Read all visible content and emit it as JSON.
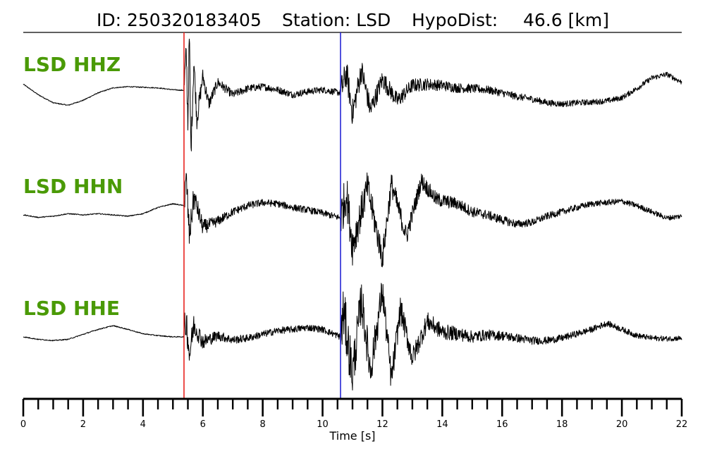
{
  "header": {
    "id_text": "ID: 250320183405",
    "station_text": "Station: LSD",
    "hypo_label": "HypoDist:",
    "hypo_value": "46.6 [km]"
  },
  "colors": {
    "label_green": "#4a9a06",
    "p_pick": "#e8231f",
    "s_pick": "#2626d4",
    "trace": "#000000"
  },
  "chart_data": {
    "type": "line",
    "xlabel": "Time [s]",
    "xlim": [
      0,
      22
    ],
    "major_ticks": [
      0,
      2,
      4,
      6,
      8,
      10,
      12,
      14,
      16,
      18,
      20,
      22
    ],
    "minor_tick_step": 0.5,
    "picks": [
      {
        "phase": "P",
        "time": 5.37,
        "color": "#e8231f"
      },
      {
        "phase": "S",
        "time": 10.6,
        "color": "#2626d4"
      }
    ],
    "series": [
      {
        "name": "LSD HHZ",
        "ylim": [
          -1,
          1
        ],
        "points": [
          [
            0,
            0.12
          ],
          [
            0.5,
            -0.05
          ],
          [
            1.0,
            -0.18
          ],
          [
            1.5,
            -0.22
          ],
          [
            2.0,
            -0.14
          ],
          [
            2.5,
            -0.02
          ],
          [
            3.0,
            0.06
          ],
          [
            3.5,
            0.08
          ],
          [
            4.0,
            0.07
          ],
          [
            4.5,
            0.06
          ],
          [
            5.0,
            0.03
          ],
          [
            5.37,
            0.02
          ],
          [
            5.45,
            0.6
          ],
          [
            5.5,
            -0.5
          ],
          [
            5.55,
            0.95
          ],
          [
            5.6,
            -1.0
          ],
          [
            5.7,
            0.5
          ],
          [
            5.8,
            -0.45
          ],
          [
            6.0,
            0.25
          ],
          [
            6.2,
            -0.2
          ],
          [
            6.5,
            0.15
          ],
          [
            7.0,
            -0.05
          ],
          [
            7.5,
            0.05
          ],
          [
            8.0,
            0.08
          ],
          [
            8.5,
            0.03
          ],
          [
            9.0,
            -0.05
          ],
          [
            9.5,
            0.0
          ],
          [
            10.0,
            0.03
          ],
          [
            10.6,
            -0.02
          ],
          [
            10.8,
            0.3
          ],
          [
            11.0,
            -0.35
          ],
          [
            11.3,
            0.35
          ],
          [
            11.6,
            -0.3
          ],
          [
            12.0,
            0.2
          ],
          [
            12.5,
            -0.15
          ],
          [
            13.0,
            0.1
          ],
          [
            13.5,
            0.12
          ],
          [
            14.0,
            0.1
          ],
          [
            14.5,
            0.06
          ],
          [
            15.0,
            0.05
          ],
          [
            15.5,
            0.03
          ],
          [
            16.0,
            -0.02
          ],
          [
            16.5,
            -0.08
          ],
          [
            17.0,
            -0.12
          ],
          [
            17.5,
            -0.18
          ],
          [
            18.0,
            -0.2
          ],
          [
            18.5,
            -0.18
          ],
          [
            19.0,
            -0.17
          ],
          [
            19.5,
            -0.15
          ],
          [
            20.0,
            -0.1
          ],
          [
            20.5,
            0.05
          ],
          [
            21.0,
            0.22
          ],
          [
            21.5,
            0.28
          ],
          [
            22.0,
            0.15
          ]
        ]
      },
      {
        "name": "LSD HHN",
        "ylim": [
          -1,
          1
        ],
        "points": [
          [
            0,
            0.0
          ],
          [
            0.5,
            -0.04
          ],
          [
            1.0,
            -0.02
          ],
          [
            1.5,
            0.02
          ],
          [
            2.0,
            0.0
          ],
          [
            2.5,
            0.02
          ],
          [
            3.0,
            0.0
          ],
          [
            3.5,
            -0.02
          ],
          [
            4.0,
            0.02
          ],
          [
            4.5,
            0.12
          ],
          [
            5.0,
            0.18
          ],
          [
            5.37,
            0.15
          ],
          [
            5.45,
            0.55
          ],
          [
            5.55,
            -0.35
          ],
          [
            5.7,
            0.3
          ],
          [
            6.0,
            -0.2
          ],
          [
            6.5,
            -0.1
          ],
          [
            7.0,
            0.05
          ],
          [
            7.5,
            0.15
          ],
          [
            8.0,
            0.2
          ],
          [
            8.5,
            0.18
          ],
          [
            9.0,
            0.12
          ],
          [
            9.5,
            0.08
          ],
          [
            10.0,
            0.03
          ],
          [
            10.6,
            -0.05
          ],
          [
            10.8,
            0.35
          ],
          [
            11.0,
            -0.5
          ],
          [
            11.5,
            0.45
          ],
          [
            12.0,
            -0.7
          ],
          [
            12.3,
            0.5
          ],
          [
            12.8,
            -0.35
          ],
          [
            13.3,
            0.55
          ],
          [
            13.8,
            0.25
          ],
          [
            14.5,
            0.18
          ],
          [
            15.0,
            0.05
          ],
          [
            15.5,
            0.0
          ],
          [
            16.0,
            -0.08
          ],
          [
            16.5,
            -0.15
          ],
          [
            17.0,
            -0.12
          ],
          [
            17.5,
            -0.02
          ],
          [
            18.0,
            0.05
          ],
          [
            18.5,
            0.12
          ],
          [
            19.0,
            0.18
          ],
          [
            19.5,
            0.2
          ],
          [
            20.0,
            0.22
          ],
          [
            20.5,
            0.15
          ],
          [
            21.0,
            0.05
          ],
          [
            21.5,
            -0.05
          ],
          [
            22.0,
            -0.02
          ]
        ]
      },
      {
        "name": "LSD HHE",
        "ylim": [
          -1,
          1
        ],
        "points": [
          [
            0,
            0.0
          ],
          [
            0.5,
            -0.04
          ],
          [
            1.0,
            -0.06
          ],
          [
            1.5,
            -0.04
          ],
          [
            2.0,
            0.04
          ],
          [
            2.5,
            0.12
          ],
          [
            3.0,
            0.18
          ],
          [
            3.5,
            0.12
          ],
          [
            4.0,
            0.05
          ],
          [
            4.5,
            0.02
          ],
          [
            5.0,
            0.0
          ],
          [
            5.37,
            0.0
          ],
          [
            5.45,
            0.28
          ],
          [
            5.55,
            -0.3
          ],
          [
            5.7,
            0.2
          ],
          [
            6.0,
            -0.08
          ],
          [
            6.5,
            0.02
          ],
          [
            7.0,
            -0.05
          ],
          [
            7.5,
            -0.02
          ],
          [
            8.0,
            0.04
          ],
          [
            8.5,
            0.1
          ],
          [
            9.0,
            0.12
          ],
          [
            9.5,
            0.15
          ],
          [
            10.0,
            0.12
          ],
          [
            10.6,
            0.0
          ],
          [
            10.7,
            0.4
          ],
          [
            11.0,
            -0.6
          ],
          [
            11.3,
            0.6
          ],
          [
            11.6,
            -0.55
          ],
          [
            12.0,
            0.75
          ],
          [
            12.3,
            -0.7
          ],
          [
            12.6,
            0.45
          ],
          [
            13.0,
            -0.35
          ],
          [
            13.5,
            0.25
          ],
          [
            14.0,
            0.08
          ],
          [
            14.5,
            0.05
          ],
          [
            15.0,
            0.0
          ],
          [
            15.5,
            0.03
          ],
          [
            16.0,
            0.02
          ],
          [
            16.5,
            -0.02
          ],
          [
            17.0,
            -0.06
          ],
          [
            17.5,
            -0.06
          ],
          [
            18.0,
            -0.02
          ],
          [
            18.5,
            0.05
          ],
          [
            19.0,
            0.12
          ],
          [
            19.5,
            0.22
          ],
          [
            20.0,
            0.12
          ],
          [
            20.5,
            0.02
          ],
          [
            21.0,
            -0.02
          ],
          [
            21.5,
            -0.03
          ],
          [
            22.0,
            -0.02
          ]
        ]
      }
    ]
  }
}
